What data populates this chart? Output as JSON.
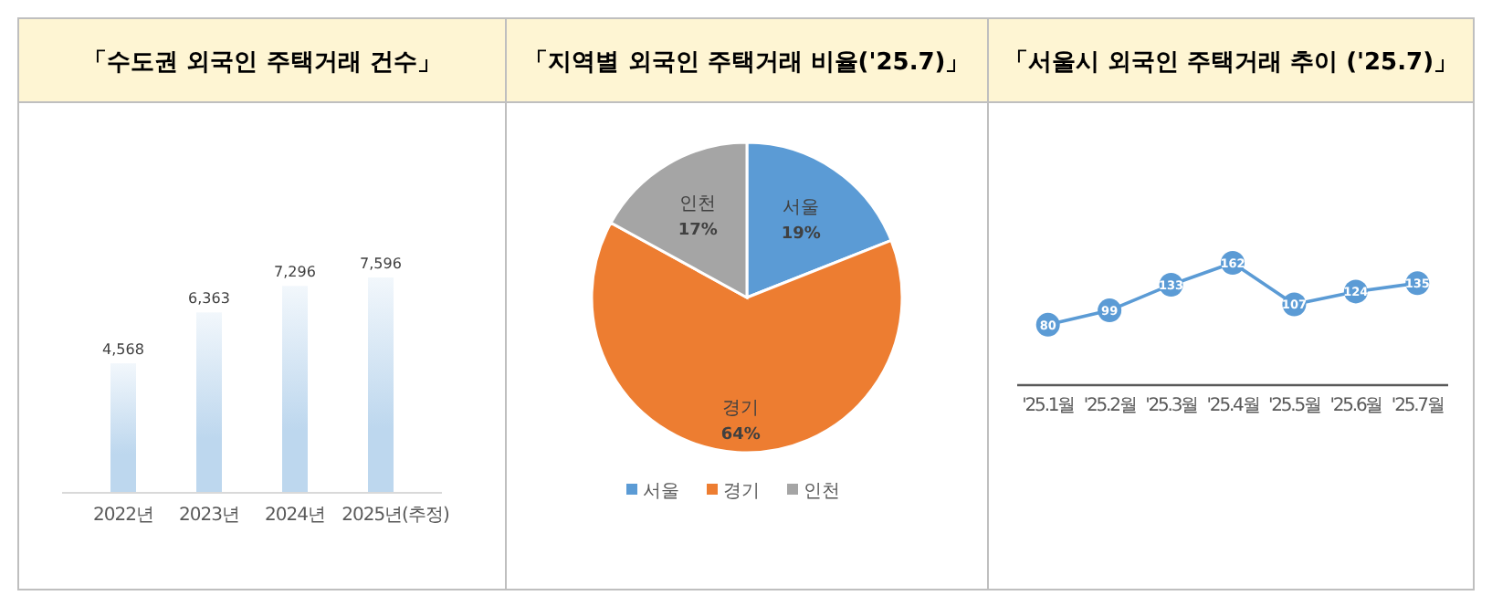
{
  "chart_data": [
    {
      "type": "bar",
      "title": "「수도권 외국인 주택거래 건수」",
      "categories": [
        "2022년",
        "2023년",
        "2024년",
        "2025년(추정)"
      ],
      "series": [
        {
          "color": "#bdd7ee",
          "values": [
            4568,
            6363,
            7296,
            7596
          ],
          "value_labels": [
            "4,568",
            "6,363",
            "7,296",
            "7,596"
          ]
        }
      ]
    },
    {
      "type": "pie",
      "title": "「지역별 외국인 주택거래 비율('25.7)」",
      "categories": [
        "서울",
        "경기",
        "인천"
      ],
      "values": [
        19,
        64,
        17
      ],
      "colors": [
        "#5b9bd5",
        "#ed7d31",
        "#a5a5a5"
      ],
      "value_labels": [
        "19%",
        "64%",
        "17%"
      ],
      "legend": "bottom"
    },
    {
      "type": "line",
      "title": "「서울시 외국인 주택거래 추이 ('25.7)」",
      "categories": [
        "'25.1월",
        "'25.2월",
        "'25.3월",
        "'25.4월",
        "'25.5월",
        "'25.6월",
        "'25.7월"
      ],
      "series": [
        {
          "color": "#5b9bd5",
          "values": [
            80,
            99,
            133,
            162,
            107,
            124,
            135
          ]
        }
      ],
      "data_labels": true,
      "marker": "circle",
      "line_style": "solid"
    }
  ]
}
